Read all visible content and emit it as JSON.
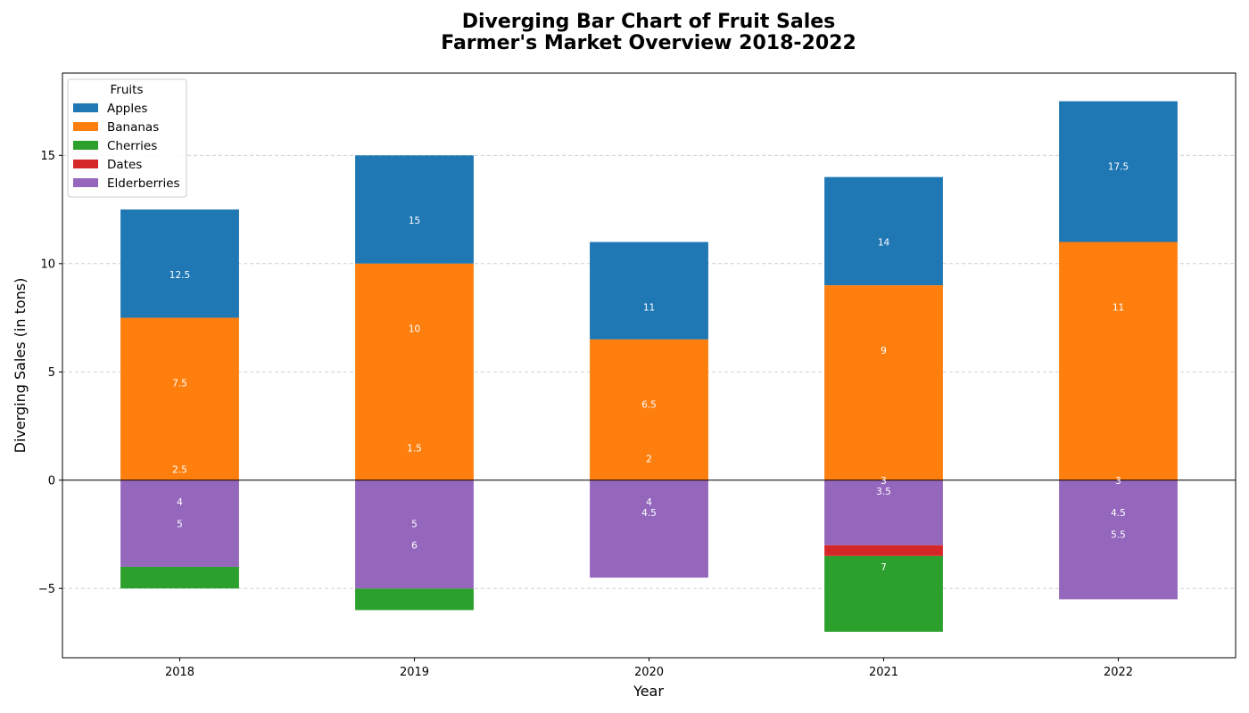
{
  "chart_data": {
    "type": "bar",
    "stacked": true,
    "title": "Diverging Bar Chart of Fruit Sales",
    "subtitle": "Farmer's Market Overview 2018-2022",
    "xlabel": "Year",
    "ylabel": "Diverging Sales (in tons)",
    "categories": [
      "2018",
      "2019",
      "2020",
      "2021",
      "2022"
    ],
    "ylim": [
      -8.2,
      18.8
    ],
    "yticks": [
      -5,
      0,
      5,
      10,
      15
    ],
    "ytick_labels": [
      "−5",
      "0",
      "5",
      "10",
      "15"
    ],
    "grid": "y-dashed",
    "legend": {
      "title": "Fruits",
      "position": "top-left"
    },
    "series": [
      {
        "name": "Apples",
        "color": "#1f77b4",
        "base": [
          7.5,
          10,
          6.5,
          9,
          11
        ],
        "top": [
          12.5,
          15,
          11,
          14,
          17.5
        ]
      },
      {
        "name": "Bananas",
        "color": "#ff7f0e",
        "base": [
          0,
          0,
          0,
          0,
          0
        ],
        "top": [
          7.5,
          10,
          6.5,
          9,
          11
        ]
      },
      {
        "name": "Cherries",
        "color": "#2ca02c",
        "base": [
          -4,
          -5,
          null,
          -3.5,
          null
        ],
        "top": [
          -5,
          -6,
          null,
          -7,
          null
        ]
      },
      {
        "name": "Dates",
        "color": "#d62728",
        "base": [
          null,
          null,
          null,
          -3,
          null
        ],
        "top": [
          null,
          null,
          null,
          -3.5,
          null
        ]
      },
      {
        "name": "Elderberries",
        "color": "#9467bd",
        "base": [
          0,
          0,
          0,
          0,
          0
        ],
        "top": [
          -4,
          -5,
          -4.5,
          -3,
          -5.5
        ]
      }
    ],
    "data_labels": [
      {
        "category": "2018",
        "text": "12.5",
        "y": 9.5
      },
      {
        "category": "2018",
        "text": "7.5",
        "y": 4.5
      },
      {
        "category": "2018",
        "text": "2.5",
        "y": 0.5
      },
      {
        "category": "2018",
        "text": "4",
        "y": -1
      },
      {
        "category": "2018",
        "text": "5",
        "y": -2
      },
      {
        "category": "2019",
        "text": "15",
        "y": 12
      },
      {
        "category": "2019",
        "text": "10",
        "y": 7
      },
      {
        "category": "2019",
        "text": "1.5",
        "y": 1.5
      },
      {
        "category": "2019",
        "text": "5",
        "y": -2
      },
      {
        "category": "2019",
        "text": "6",
        "y": -3
      },
      {
        "category": "2020",
        "text": "11",
        "y": 8
      },
      {
        "category": "2020",
        "text": "6.5",
        "y": 3.5
      },
      {
        "category": "2020",
        "text": "2",
        "y": 1
      },
      {
        "category": "2020",
        "text": "4",
        "y": -1
      },
      {
        "category": "2020",
        "text": "4.5",
        "y": -1.5
      },
      {
        "category": "2021",
        "text": "14",
        "y": 11
      },
      {
        "category": "2021",
        "text": "9",
        "y": 6
      },
      {
        "category": "2021",
        "text": "3",
        "y": 0
      },
      {
        "category": "2021",
        "text": "3.5",
        "y": -0.5
      },
      {
        "category": "2021",
        "text": "7",
        "y": -4
      },
      {
        "category": "2022",
        "text": "17.5",
        "y": 14.5
      },
      {
        "category": "2022",
        "text": "11",
        "y": 8
      },
      {
        "category": "2022",
        "text": "3",
        "y": 0
      },
      {
        "category": "2022",
        "text": "4.5",
        "y": -1.5
      },
      {
        "category": "2022",
        "text": "5.5",
        "y": -2.5
      }
    ]
  }
}
